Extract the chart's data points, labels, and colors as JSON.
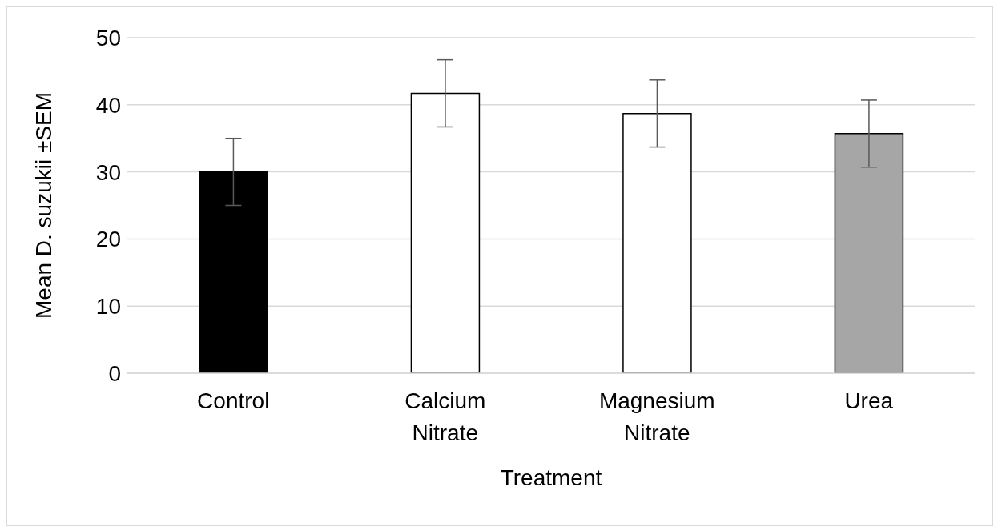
{
  "chart_data": {
    "type": "bar",
    "xlabel": "Treatment",
    "ylabel": "Mean D. suzukii ±SEM",
    "categories": [
      "Control",
      "Calcium Nitrate",
      "Magnesium Nitrate",
      "Urea"
    ],
    "values": [
      30,
      41.7,
      38.7,
      35.7
    ],
    "errors": [
      5,
      5,
      5,
      5
    ],
    "colors": [
      "#000000",
      "#ffffff",
      "#ffffff",
      "#a6a6a6"
    ],
    "ylim": [
      0,
      50
    ],
    "yticks": [
      0,
      10,
      20,
      30,
      40,
      50
    ],
    "grid": "y",
    "legend": false
  }
}
